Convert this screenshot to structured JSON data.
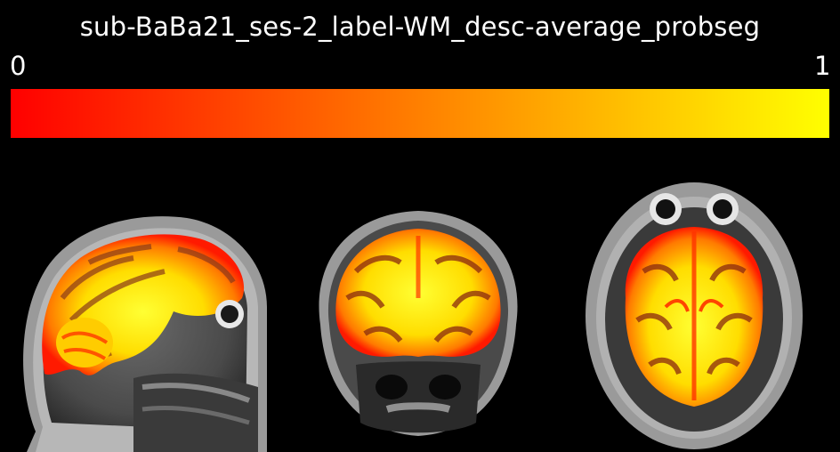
{
  "title": "sub-BaBa21_ses-2_label-WM_desc-average_probseg",
  "colorbar": {
    "min_label": "0",
    "max_label": "1",
    "colormap": "autumn",
    "stops": [
      "#ff0000",
      "#ff8000",
      "#ffff00"
    ]
  },
  "views": [
    {
      "name": "sagittal"
    },
    {
      "name": "coronal"
    },
    {
      "name": "axial"
    }
  ],
  "colors": {
    "background": "#000000",
    "text": "#ffffff",
    "overlay_low": "#ff1a00",
    "overlay_mid": "#ff9900",
    "overlay_high": "#ffee00"
  }
}
